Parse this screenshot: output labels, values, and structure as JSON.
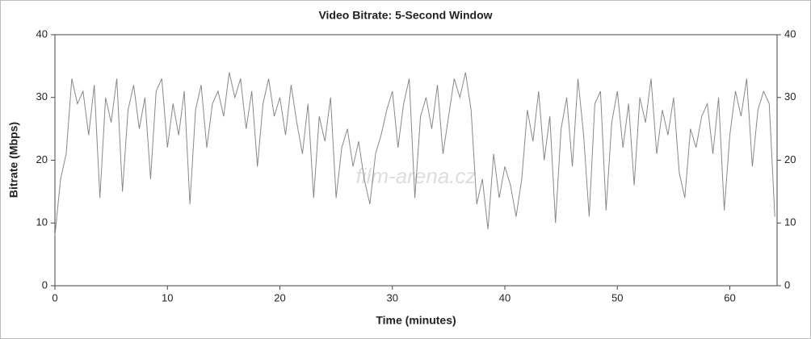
{
  "chart_data": {
    "type": "line",
    "title": "Video Bitrate: 5-Second Window",
    "x_label": "Time (minutes)",
    "y_label": "Bitrate (Mbps)",
    "watermark": "film-arena.cz",
    "xlim": [
      0,
      64.2
    ],
    "ylim": [
      0,
      40
    ],
    "xticks": [
      0,
      10,
      20,
      30,
      40,
      50,
      60
    ],
    "yticks": [
      0,
      10,
      20,
      30,
      40
    ],
    "right_axis_labels": true,
    "x": [
      0,
      0.5,
      1,
      1.5,
      2,
      2.5,
      3,
      3.5,
      4,
      4.5,
      5,
      5.5,
      6,
      6.5,
      7,
      7.5,
      8,
      8.5,
      9,
      9.5,
      10,
      10.5,
      11,
      11.5,
      12,
      12.5,
      13,
      13.5,
      14,
      14.5,
      15,
      15.5,
      16,
      16.5,
      17,
      17.5,
      18,
      18.5,
      19,
      19.5,
      20,
      20.5,
      21,
      21.5,
      22,
      22.5,
      23,
      23.5,
      24,
      24.5,
      25,
      25.5,
      26,
      26.5,
      27,
      27.5,
      28,
      28.5,
      29,
      29.5,
      30,
      30.5,
      31,
      31.5,
      32,
      32.5,
      33,
      33.5,
      34,
      34.5,
      35,
      35.5,
      36,
      36.5,
      37,
      37.5,
      38,
      38.5,
      39,
      39.5,
      40,
      40.5,
      41,
      41.5,
      42,
      42.5,
      43,
      43.5,
      44,
      44.5,
      45,
      45.5,
      46,
      46.5,
      47,
      47.5,
      48,
      48.5,
      49,
      49.5,
      50,
      50.5,
      51,
      51.5,
      52,
      52.5,
      53,
      53.5,
      54,
      54.5,
      55,
      55.5,
      56,
      56.5,
      57,
      57.5,
      58,
      58.5,
      59,
      59.5,
      60,
      60.5,
      61,
      61.5,
      62,
      62.5,
      63,
      63.5,
      64
    ],
    "series": [
      {
        "color": "#888888",
        "values": [
          8,
          17,
          21,
          33,
          29,
          31,
          24,
          32,
          14,
          30,
          26,
          33,
          15,
          28,
          32,
          25,
          30,
          17,
          31,
          33,
          22,
          29,
          24,
          31,
          13,
          28,
          32,
          22,
          29,
          31,
          27,
          34,
          30,
          33,
          25,
          31,
          19,
          29,
          33,
          27,
          30,
          24,
          32,
          26,
          21,
          29,
          14,
          27,
          23,
          30,
          14,
          22,
          25,
          19,
          23,
          17,
          13,
          21,
          24,
          28,
          31,
          22,
          29,
          33,
          14,
          27,
          30,
          25,
          32,
          21,
          27,
          33,
          30,
          34,
          28,
          13,
          17,
          9,
          21,
          14,
          19,
          16,
          11,
          17,
          28,
          23,
          31,
          20,
          27,
          10,
          25,
          30,
          19,
          33,
          24,
          11,
          29,
          31,
          12,
          26,
          31,
          22,
          29,
          16,
          30,
          26,
          33,
          21,
          28,
          24,
          30,
          18,
          14,
          25,
          22,
          27,
          29,
          21,
          30,
          12,
          24,
          31,
          27,
          33,
          19,
          28,
          31,
          29,
          11
        ]
      }
    ]
  }
}
